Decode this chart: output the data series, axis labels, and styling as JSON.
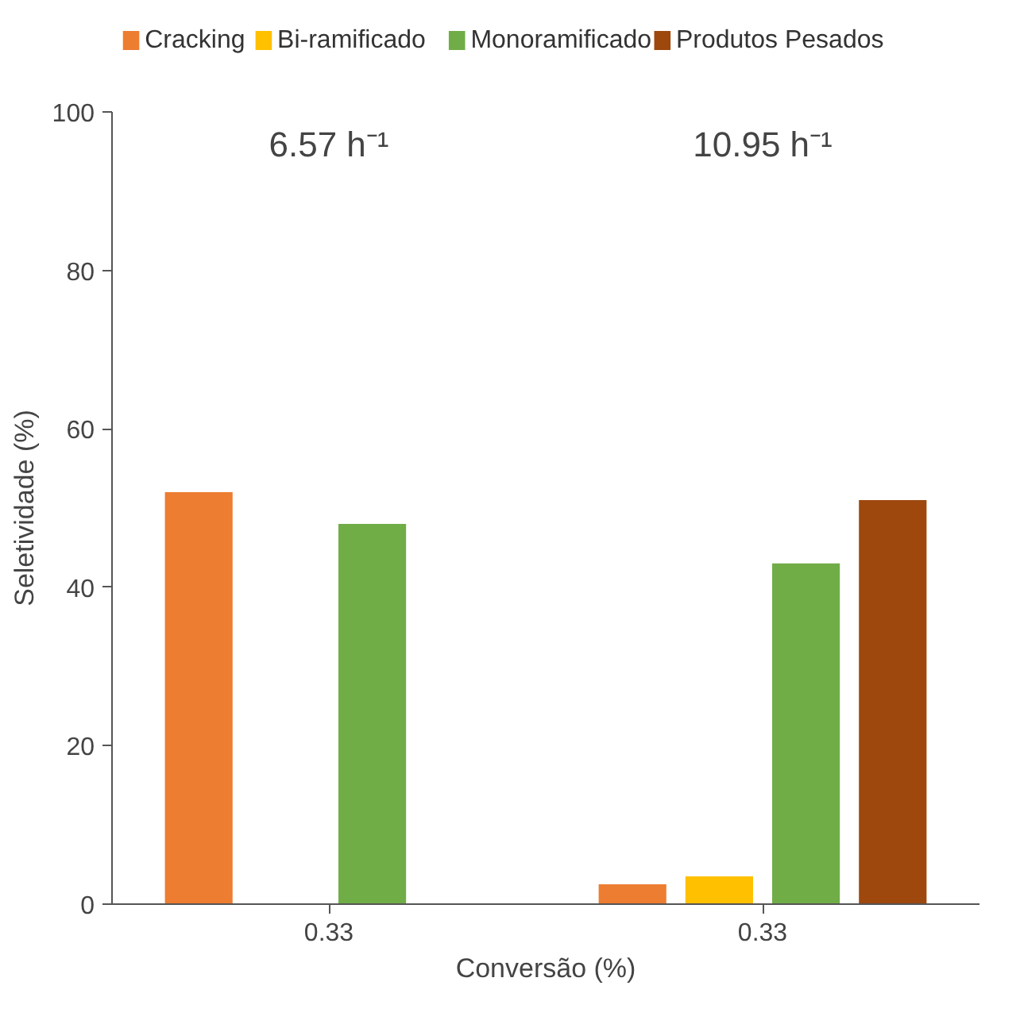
{
  "chart_data": {
    "type": "bar",
    "categories": [
      "0.33",
      "0.33"
    ],
    "series": [
      {
        "name": "Cracking",
        "color": "#ed7d31",
        "values": [
          52,
          2.5
        ]
      },
      {
        "name": "Bi-ramificado",
        "color": "#ffc000",
        "values": [
          null,
          3.5
        ]
      },
      {
        "name": "Monoramificado",
        "color": "#70ad47",
        "values": [
          48,
          43
        ]
      },
      {
        "name": "Produtos Pesados",
        "color": "#9e480e",
        "values": [
          null,
          51
        ]
      }
    ],
    "xlabel": "Conversão (%)",
    "ylabel": "Seletividade (%)",
    "ylim": [
      0,
      100
    ],
    "yticks": [
      0,
      20,
      40,
      60,
      80,
      100
    ],
    "annotations": [
      "6.57 h⁻¹",
      "10.95 h⁻¹"
    ],
    "grid": false,
    "legend": "top"
  }
}
